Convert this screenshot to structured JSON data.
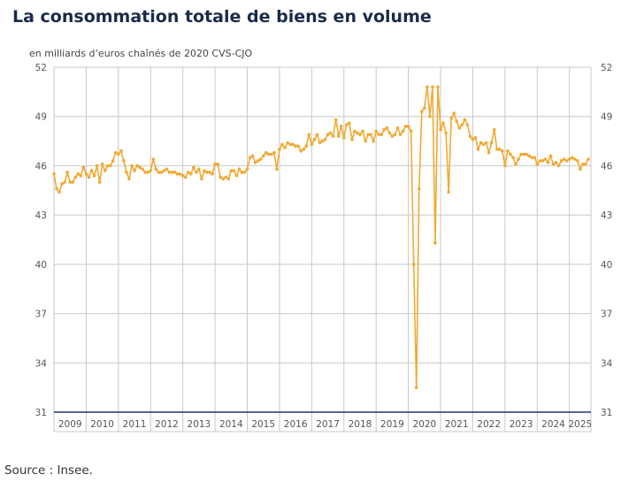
{
  "title": "La consommation totale de biens en volume",
  "source": "Source : Insee.",
  "chart_data": {
    "type": "line",
    "ylabel": "en milliards d’euros chaînés de 2020 CVS-CJO",
    "ylim": [
      31,
      52
    ],
    "yticks": [
      31,
      34,
      37,
      40,
      43,
      46,
      49,
      52
    ],
    "xlim": [
      "2009-01",
      "2025-09"
    ],
    "x_tick_labels": [
      "2009",
      "2010",
      "2011",
      "2012",
      "2013",
      "2014",
      "2015",
      "2016",
      "2017",
      "2018",
      "2019",
      "2020",
      "2021",
      "2022",
      "2023",
      "2024",
      "2025"
    ],
    "grid": true,
    "right_axis": true,
    "line_color": "#f2a933",
    "series": [
      {
        "start": "2009-01",
        "frequency": "monthly",
        "values": [
          45.5,
          44.6,
          44.4,
          44.9,
          45.0,
          45.6,
          45.0,
          45.0,
          45.3,
          45.5,
          45.4,
          45.9,
          45.5,
          45.3,
          45.7,
          45.4,
          46.0,
          45.0,
          46.1,
          45.7,
          46.0,
          46.0,
          46.3,
          46.8,
          46.7,
          46.9,
          46.3,
          45.6,
          45.2,
          46.0,
          45.7,
          46.0,
          45.9,
          45.8,
          45.6,
          45.6,
          45.7,
          46.4,
          45.8,
          45.6,
          45.6,
          45.7,
          45.8,
          45.6,
          45.6,
          45.6,
          45.5,
          45.5,
          45.4,
          45.3,
          45.6,
          45.5,
          45.9,
          45.6,
          45.8,
          45.2,
          45.7,
          45.6,
          45.6,
          45.5,
          46.1,
          46.1,
          45.3,
          45.2,
          45.3,
          45.2,
          45.7,
          45.7,
          45.4,
          45.8,
          45.6,
          45.6,
          45.8,
          46.5,
          46.6,
          46.2,
          46.3,
          46.4,
          46.6,
          46.8,
          46.7,
          46.7,
          46.8,
          45.8,
          47.0,
          47.3,
          47.1,
          47.4,
          47.3,
          47.3,
          47.2,
          47.2,
          46.9,
          47.0,
          47.2,
          47.9,
          47.3,
          47.6,
          47.9,
          47.4,
          47.5,
          47.6,
          47.9,
          48.0,
          47.8,
          48.8,
          47.8,
          48.4,
          47.7,
          48.5,
          48.6,
          47.6,
          48.1,
          48.0,
          47.9,
          48.1,
          47.5,
          47.9,
          47.9,
          47.5,
          48.1,
          47.9,
          47.9,
          48.2,
          48.3,
          48.0,
          47.8,
          47.9,
          48.3,
          47.9,
          48.1,
          48.4,
          48.4,
          48.1,
          40.0,
          32.5,
          44.6,
          49.3,
          49.5,
          50.8,
          49.0,
          50.8,
          41.3,
          50.8,
          48.2,
          48.6,
          48.0,
          44.4,
          48.9,
          49.2,
          48.7,
          48.3,
          48.5,
          48.8,
          48.5,
          47.8,
          47.6,
          47.7,
          47.0,
          47.4,
          47.3,
          47.4,
          46.8,
          47.4,
          48.2,
          47.0,
          47.0,
          46.9,
          46.0,
          46.9,
          46.7,
          46.5,
          46.1,
          46.4,
          46.7,
          46.7,
          46.7,
          46.6,
          46.5,
          46.5,
          46.1,
          46.3,
          46.3,
          46.4,
          46.2,
          46.6,
          46.1,
          46.2,
          46.0,
          46.3,
          46.4,
          46.3,
          46.4,
          46.5,
          46.4,
          46.3,
          45.8,
          46.1,
          46.1,
          46.4
        ]
      }
    ]
  }
}
